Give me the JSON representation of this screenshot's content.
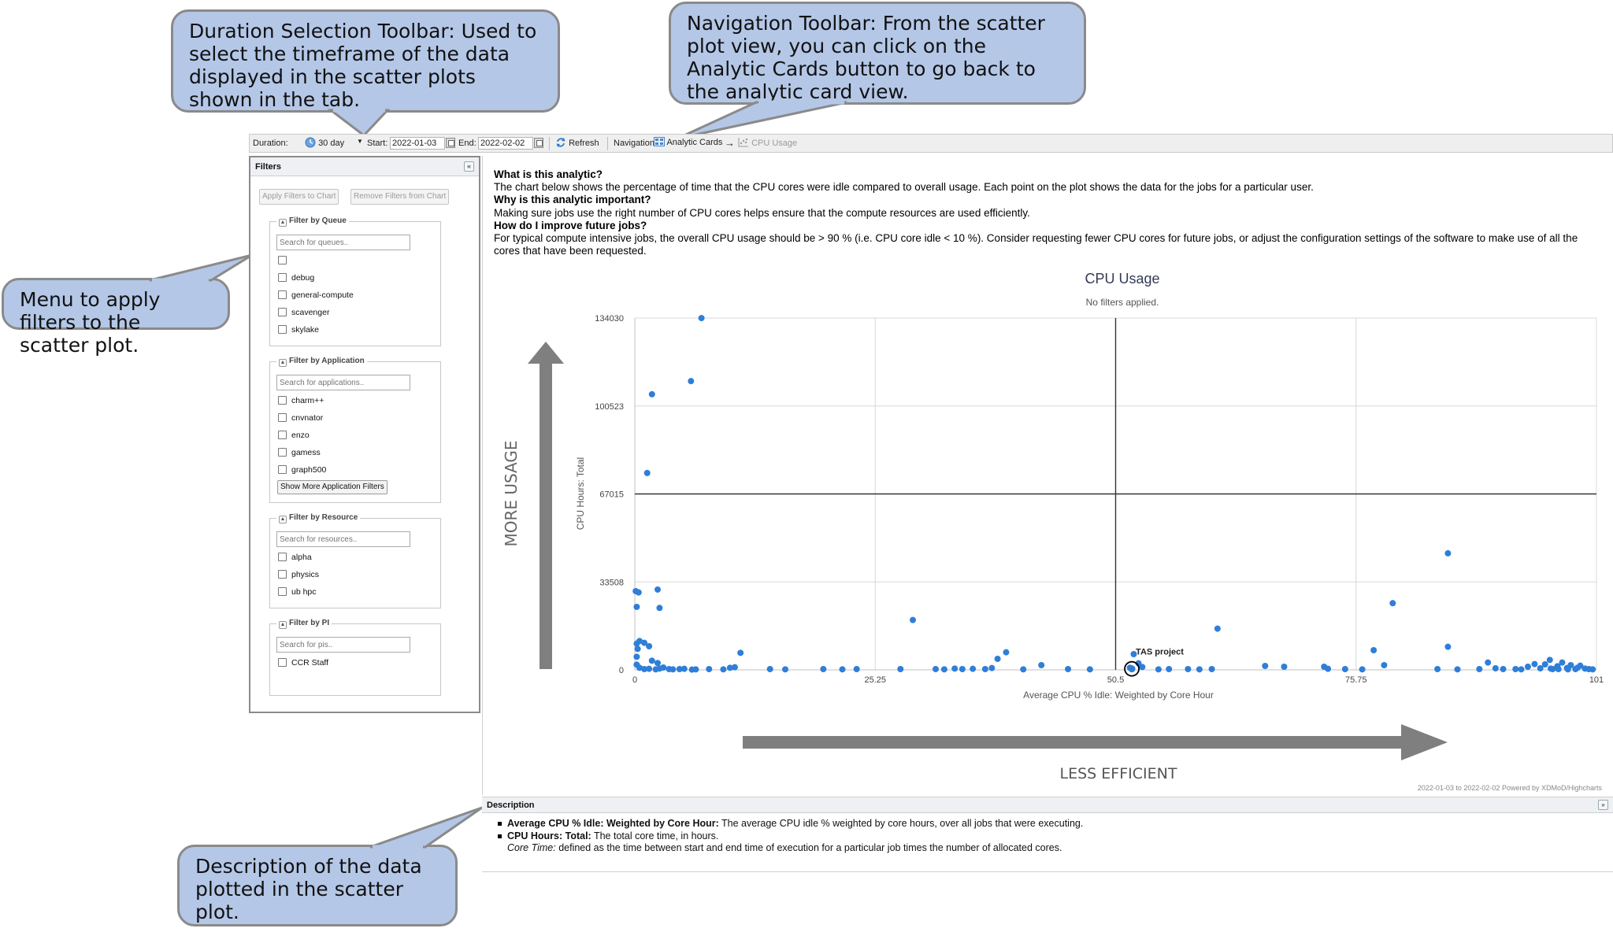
{
  "callouts": {
    "duration": "Duration Selection Toolbar: Used to select the timeframe of the data displayed in the scatter plots shown in the tab.",
    "navigation": "Navigation Toolbar: From the scatter plot view, you can click on the Analytic Cards button to go back to the analytic card view.",
    "filters": "Menu to apply filters to the scatter plot.",
    "description": "Description of the data plotted in the scatter plot."
  },
  "toolbar": {
    "duration_label": "Duration:",
    "duration_value": "30 day",
    "start_label": "Start:",
    "start_value": "2022-01-03",
    "end_label": "End:",
    "end_value": "2022-02-02",
    "refresh_label": "Refresh",
    "navigation_label": "Navigation:",
    "analytic_cards_label": "Analytic Cards",
    "arrow": "→",
    "current_label": "CPU Usage"
  },
  "filters": {
    "title": "Filters",
    "apply_label": "Apply Filters to Chart",
    "remove_label": "Remove Filters from Chart",
    "queue": {
      "legend": "Filter by Queue",
      "placeholder": "Search for queues..",
      "options": [
        "",
        "debug",
        "general-compute",
        "scavenger",
        "skylake"
      ]
    },
    "application": {
      "legend": "Filter by Application",
      "placeholder": "Search for applications..",
      "options": [
        "charm++",
        "cnvnator",
        "enzo",
        "gamess",
        "graph500"
      ],
      "more_label": "Show More Application Filters"
    },
    "resource": {
      "legend": "Filter by Resource",
      "placeholder": "Search for resources..",
      "options": [
        "alpha",
        "physics",
        "ub hpc"
      ]
    },
    "pi": {
      "legend": "Filter by PI",
      "placeholder": "Search for pis..",
      "options": [
        "CCR Staff"
      ]
    }
  },
  "analytic": {
    "q1": "What is this analytic?",
    "a1": "The chart below shows the percentage of time that the CPU cores were idle compared to overall usage. Each point on the plot shows the data for the jobs for a particular user.",
    "q2": "Why is this analytic important?",
    "a2": "Making sure jobs use the right number of CPU cores helps ensure that the compute resources are used efficiently.",
    "q3": "How do I improve future jobs?",
    "a3": "For typical compute intensive jobs, the overall CPU usage should be > 90 % (i.e. CPU core idle < 10 %). Consider requesting fewer CPU cores for future jobs, or adjust the configuration settings of the software to make use of all the cores that have been requested."
  },
  "description": {
    "title": "Description",
    "item1_term": "Average CPU % Idle: Weighted by Core Hour:",
    "item1_text": " The average CPU idle % weighted by core hours, over all jobs that were executing.",
    "item2_term": "CPU Hours: Total:",
    "item2_text": " The total core time, in hours.",
    "item3_term": "Core Time:",
    "item3_text": " defined as the time between start and end time of execution for a particular job times the number of allocated cores."
  },
  "colors": {
    "point": "#2f7ed8",
    "arrow": "#7f7f7f",
    "callout_fill": "#b4c7e7",
    "title": "#333a55"
  },
  "chart_data": {
    "type": "scatter",
    "title": "CPU Usage",
    "subtitle": "No filters applied.",
    "xlabel": "Average CPU % Idle: Weighted by Core Hour",
    "ylabel": "CPU Hours: Total",
    "xlim": [
      0,
      101
    ],
    "ylim": [
      0,
      134030
    ],
    "xticks": [
      "0",
      "25.25",
      "50.5",
      "75.75",
      "101"
    ],
    "yticks": [
      "0",
      "33508",
      "67015",
      "100523",
      "134030"
    ],
    "quadrant_lines": {
      "x": 50.5,
      "y": 67015
    },
    "up_annotation": "MORE USAGE",
    "right_annotation": "LESS EFFICIENT",
    "highlight": {
      "label": "TAS project",
      "x": 52.2,
      "y": 400
    },
    "credits": "2022-01-03 to 2022-02-02 Powered by XDMoD/Highcharts",
    "points": [
      [
        7,
        134000
      ],
      [
        1.8,
        105000
      ],
      [
        5.9,
        110000
      ],
      [
        1.3,
        75000
      ],
      [
        0.1,
        30000
      ],
      [
        0.4,
        29500
      ],
      [
        2.4,
        30600
      ],
      [
        2.6,
        23600
      ],
      [
        0.2,
        24000
      ],
      [
        0.2,
        10000
      ],
      [
        0.3,
        8000
      ],
      [
        0.5,
        11000
      ],
      [
        1.0,
        10300
      ],
      [
        1.5,
        9000
      ],
      [
        0.2,
        5000
      ],
      [
        1.8,
        3500
      ],
      [
        2.4,
        2600
      ],
      [
        0.2,
        2000
      ],
      [
        0.5,
        800
      ],
      [
        1.0,
        300
      ],
      [
        1.5,
        400
      ],
      [
        2.2,
        200
      ],
      [
        2.6,
        500
      ],
      [
        3.0,
        900
      ],
      [
        3.6,
        300
      ],
      [
        4.0,
        200
      ],
      [
        4.7,
        300
      ],
      [
        5.2,
        400
      ],
      [
        6.0,
        100
      ],
      [
        6.4,
        200
      ],
      [
        7.8,
        300
      ],
      [
        9.3,
        200
      ],
      [
        10.0,
        800
      ],
      [
        11.1,
        6500
      ],
      [
        10.5,
        1000
      ],
      [
        14.2,
        300
      ],
      [
        15.8,
        200
      ],
      [
        19.8,
        300
      ],
      [
        21.8,
        200
      ],
      [
        23.3,
        300
      ],
      [
        29.2,
        19000
      ],
      [
        27.9,
        300
      ],
      [
        31.6,
        300
      ],
      [
        32.5,
        200
      ],
      [
        33.6,
        500
      ],
      [
        34.4,
        300
      ],
      [
        35.5,
        400
      ],
      [
        36.8,
        300
      ],
      [
        37.5,
        700
      ],
      [
        38.1,
        4200
      ],
      [
        39.0,
        6700
      ],
      [
        40.8,
        200
      ],
      [
        42.7,
        1800
      ],
      [
        45.5,
        300
      ],
      [
        47.8,
        200
      ],
      [
        52.4,
        6000
      ],
      [
        52.9,
        2500
      ],
      [
        52.0,
        800
      ],
      [
        53.3,
        1100
      ],
      [
        55.0,
        200
      ],
      [
        56.1,
        300
      ],
      [
        58.1,
        300
      ],
      [
        59.3,
        200
      ],
      [
        60.6,
        300
      ],
      [
        61.2,
        15700
      ],
      [
        66.2,
        1500
      ],
      [
        68.2,
        1200
      ],
      [
        72.4,
        1200
      ],
      [
        72.8,
        400
      ],
      [
        74.6,
        300
      ],
      [
        76.4,
        200
      ],
      [
        77.6,
        7500
      ],
      [
        78.7,
        1800
      ],
      [
        79.6,
        25400
      ],
      [
        85.4,
        44400
      ],
      [
        85.4,
        8800
      ],
      [
        84.3,
        300
      ],
      [
        86.4,
        200
      ],
      [
        88.7,
        300
      ],
      [
        89.6,
        2800
      ],
      [
        90.4,
        600
      ],
      [
        91.2,
        300
      ],
      [
        92.5,
        300
      ],
      [
        93.1,
        200
      ],
      [
        93.8,
        1200
      ],
      [
        94.5,
        2200
      ],
      [
        95.1,
        600
      ],
      [
        95.6,
        2100
      ],
      [
        96.1,
        3800
      ],
      [
        96.4,
        300
      ],
      [
        96.9,
        1400
      ],
      [
        97.4,
        2800
      ],
      [
        97.9,
        700
      ],
      [
        98.3,
        1800
      ],
      [
        98.8,
        300
      ],
      [
        99.3,
        1600
      ],
      [
        99.8,
        500
      ],
      [
        100.2,
        300
      ],
      [
        100.6,
        200
      ],
      [
        97.0,
        300
      ],
      [
        96.2,
        500
      ],
      [
        99.0,
        800
      ],
      [
        98.0,
        200
      ]
    ]
  }
}
